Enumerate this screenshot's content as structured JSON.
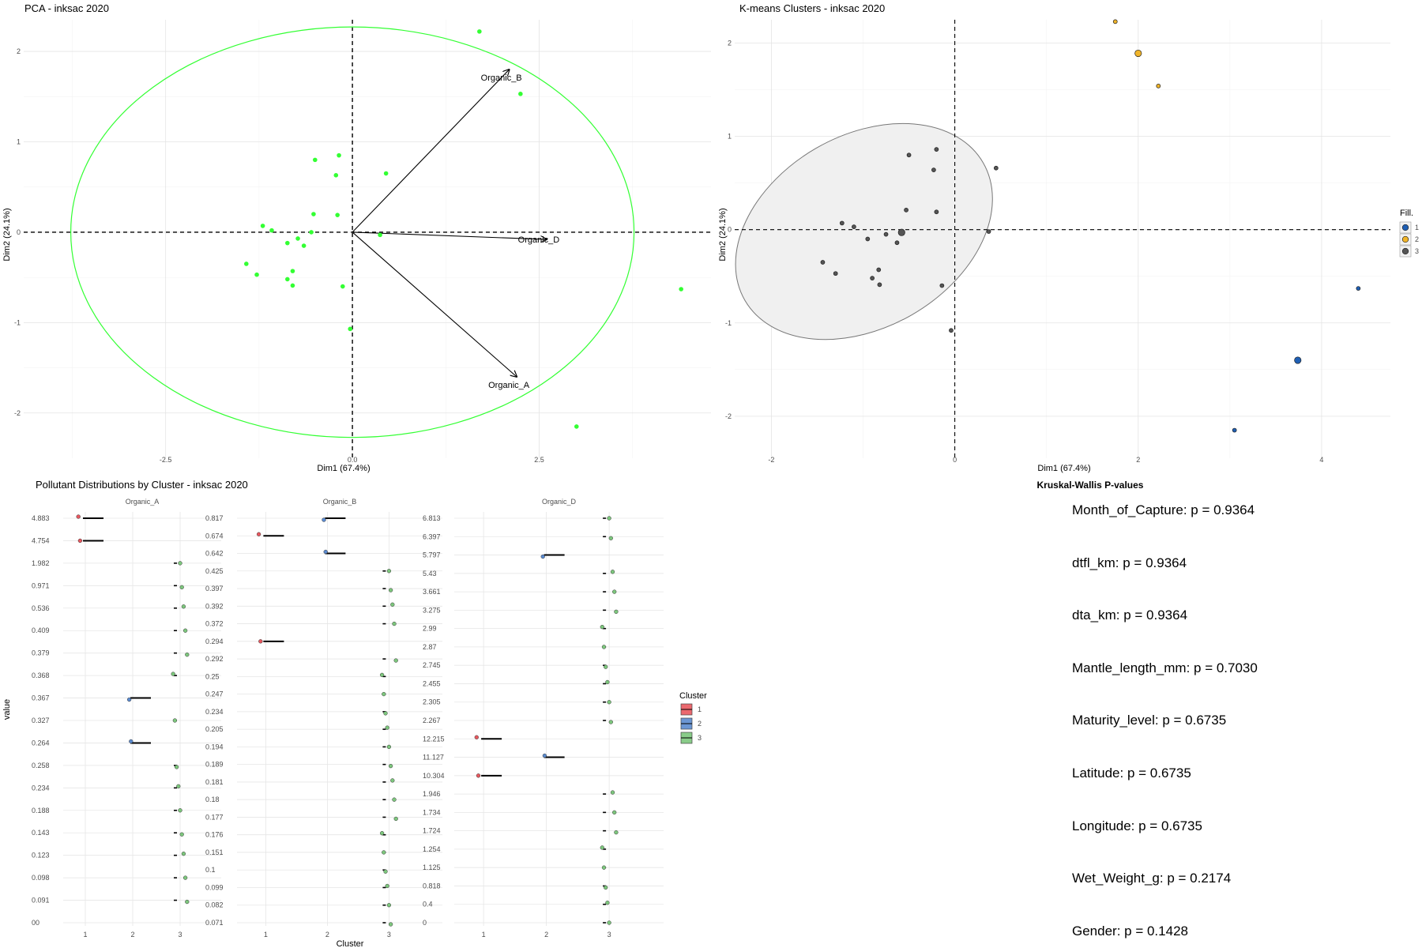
{
  "colors": {
    "pca_points": "#33ff33",
    "pca_ellipse": "#33ff33",
    "cluster1": "#e8585f",
    "cluster2": "#5b8bd0",
    "cluster3": "#7dc77d",
    "km_point": "#555555",
    "km_cluster1": "#1f5fb4",
    "km_cluster2": "#f0b429",
    "ellipse_fill": "#f0f0f0",
    "ellipse_stroke": "#777777"
  },
  "pca": {
    "title": "PCA - inksac 2020",
    "xlabel": "Dim1 (67.4%)",
    "ylabel": "Dim2 (24.1%)",
    "xticks": [
      "-2.5",
      "0.0",
      "2.5"
    ],
    "yticks": [
      "2",
      "1",
      "0",
      "-1",
      "-2"
    ]
  },
  "kmeans": {
    "title": "K-means Clusters - inksac 2020",
    "xlabel": "Dim1 (67.4%)",
    "ylabel": "Dim2 (24.1%)",
    "xticks": [
      "-2",
      "0",
      "2",
      "4"
    ],
    "yticks": [
      "2",
      "1",
      "0",
      "-1",
      "-2"
    ],
    "legend_title": "Fill.",
    "legend_items": [
      "1",
      "2",
      "3"
    ]
  },
  "dist": {
    "title": "Pollutant Distributions by Cluster - inksac 2020",
    "xlabel": "Cluster",
    "ylabel": "value",
    "legend_title": "Cluster",
    "legend_items": [
      "1",
      "2",
      "3"
    ]
  },
  "kw": {
    "title": "Kruskal-Wallis P-values",
    "lines": [
      "Month_of_Capture: p = 0.9364",
      "dtfl_km: p = 0.9364",
      "dta_km: p = 0.9364",
      "Mantle_length_mm: p = 0.7030",
      "Maturity_level: p = 0.6735",
      "Latitude: p = 0.6735",
      "Longitude: p = 0.6735",
      "Wet_Weight_g: p = 0.2174",
      "Gender: p = 0.1428"
    ]
  },
  "chart_data": [
    {
      "type": "scatter",
      "title": "PCA - inksac 2020",
      "xlabel": "Dim1 (67.4%)",
      "ylabel": "Dim2 (24.1%)",
      "xlim": [
        -4.4,
        4.8
      ],
      "ylim": [
        -2.5,
        2.35
      ],
      "grid": true,
      "points": [
        {
          "x": 1.7,
          "y": 2.22
        },
        {
          "x": 2.25,
          "y": 1.53
        },
        {
          "x": 0.45,
          "y": 0.65
        },
        {
          "x": -0.5,
          "y": 0.8
        },
        {
          "x": -0.18,
          "y": 0.85
        },
        {
          "x": -0.22,
          "y": 0.63
        },
        {
          "x": -0.52,
          "y": 0.2
        },
        {
          "x": -0.2,
          "y": 0.19
        },
        {
          "x": -1.2,
          "y": 0.07
        },
        {
          "x": -1.08,
          "y": 0.02
        },
        {
          "x": -0.55,
          "y": 0.0
        },
        {
          "x": -0.73,
          "y": -0.07
        },
        {
          "x": -0.87,
          "y": -0.12
        },
        {
          "x": -0.65,
          "y": -0.15
        },
        {
          "x": 0.37,
          "y": -0.03
        },
        {
          "x": -1.42,
          "y": -0.35
        },
        {
          "x": -1.28,
          "y": -0.47
        },
        {
          "x": -0.8,
          "y": -0.43
        },
        {
          "x": -0.87,
          "y": -0.52
        },
        {
          "x": -0.8,
          "y": -0.59
        },
        {
          "x": -0.13,
          "y": -0.6
        },
        {
          "x": -0.03,
          "y": -1.07
        },
        {
          "x": 4.4,
          "y": -0.63
        },
        {
          "x": 3.0,
          "y": -2.15
        }
      ],
      "ellipse": {
        "cx": 0.0,
        "cy": 0.0,
        "rx": 3.77,
        "ry": 2.27
      },
      "vectors": [
        {
          "name": "Organic_B",
          "x": 2.1,
          "y": 1.8
        },
        {
          "name": "Organic_D",
          "x": 2.6,
          "y": -0.08
        },
        {
          "name": "Organic_A",
          "x": 2.2,
          "y": -1.6
        }
      ]
    },
    {
      "type": "scatter",
      "title": "K-means Clusters - inksac 2020",
      "xlabel": "Dim1 (67.4%)",
      "ylabel": "Dim2 (24.1%)",
      "xlim": [
        -2.4,
        4.75
      ],
      "ylim": [
        -2.45,
        2.25
      ],
      "grid": true,
      "legend_title": "Fill.",
      "legend_position": "right",
      "ellipse": {
        "cx": -0.99,
        "cy": -0.02,
        "rx": 1.5,
        "ry": 1.03,
        "angle_deg": -30
      },
      "points": [
        {
          "cluster": "2",
          "x": 1.75,
          "y": 2.23,
          "center": false
        },
        {
          "cluster": "2",
          "x": 2.0,
          "y": 1.89,
          "center": true
        },
        {
          "cluster": "2",
          "x": 2.22,
          "y": 1.54,
          "center": false
        },
        {
          "cluster": "1",
          "x": 4.4,
          "y": -0.63,
          "center": false
        },
        {
          "cluster": "1",
          "x": 3.74,
          "y": -1.4,
          "center": true
        },
        {
          "cluster": "1",
          "x": 3.05,
          "y": -2.15,
          "center": false
        },
        {
          "cluster": "3",
          "x": 0.45,
          "y": 0.66,
          "center": false
        },
        {
          "cluster": "3",
          "x": -0.5,
          "y": 0.8,
          "center": false
        },
        {
          "cluster": "3",
          "x": -0.2,
          "y": 0.86,
          "center": false
        },
        {
          "cluster": "3",
          "x": -0.23,
          "y": 0.64,
          "center": false
        },
        {
          "cluster": "3",
          "x": -0.53,
          "y": 0.21,
          "center": false
        },
        {
          "cluster": "3",
          "x": -0.2,
          "y": 0.19,
          "center": false
        },
        {
          "cluster": "3",
          "x": -1.23,
          "y": 0.07,
          "center": false
        },
        {
          "cluster": "3",
          "x": -1.1,
          "y": 0.03,
          "center": false
        },
        {
          "cluster": "3",
          "x": -0.58,
          "y": -0.03,
          "center": true
        },
        {
          "cluster": "3",
          "x": -0.75,
          "y": -0.05,
          "center": false
        },
        {
          "cluster": "3",
          "x": -0.95,
          "y": -0.1,
          "center": false
        },
        {
          "cluster": "3",
          "x": -0.63,
          "y": -0.14,
          "center": false
        },
        {
          "cluster": "3",
          "x": 0.37,
          "y": -0.02,
          "center": false
        },
        {
          "cluster": "3",
          "x": -1.44,
          "y": -0.35,
          "center": false
        },
        {
          "cluster": "3",
          "x": -1.3,
          "y": -0.47,
          "center": false
        },
        {
          "cluster": "3",
          "x": -0.83,
          "y": -0.43,
          "center": false
        },
        {
          "cluster": "3",
          "x": -0.9,
          "y": -0.52,
          "center": false
        },
        {
          "cluster": "3",
          "x": -0.82,
          "y": -0.59,
          "center": false
        },
        {
          "cluster": "3",
          "x": -0.14,
          "y": -0.6,
          "center": false
        },
        {
          "cluster": "3",
          "x": -0.04,
          "y": -1.08,
          "center": false
        }
      ]
    },
    {
      "type": "scatter",
      "title": "Pollutant Distributions by Cluster - inksac 2020",
      "xlabel": "Cluster",
      "ylabel": "value",
      "legend_title": "Cluster",
      "legend_position": "right",
      "x_categories": [
        "1",
        "2",
        "3"
      ],
      "facets": [
        {
          "name": "Organic_A",
          "y_categories": [
            "4.883",
            "4.754",
            "1.982",
            "0.971",
            "0.536",
            "0.409",
            "0.379",
            "0.368",
            "0.367",
            "0.327",
            "0.264",
            "0.258",
            "0.234",
            "0.188",
            "0.143",
            "0.123",
            "0.098",
            "0.091",
            "00"
          ],
          "points": [
            {
              "cluster": "1",
              "value": "4.883"
            },
            {
              "cluster": "1",
              "value": "4.754"
            },
            {
              "cluster": "2",
              "value": "0.367"
            },
            {
              "cluster": "2",
              "value": "0.264"
            },
            {
              "cluster": "3",
              "value": "1.982"
            },
            {
              "cluster": "3",
              "value": "0.971"
            },
            {
              "cluster": "3",
              "value": "0.536"
            },
            {
              "cluster": "3",
              "value": "0.409"
            },
            {
              "cluster": "3",
              "value": "0.379"
            },
            {
              "cluster": "3",
              "value": "0.368"
            },
            {
              "cluster": "3",
              "value": "0.327"
            },
            {
              "cluster": "3",
              "value": "0.258"
            },
            {
              "cluster": "3",
              "value": "0.234"
            },
            {
              "cluster": "3",
              "value": "0.188"
            },
            {
              "cluster": "3",
              "value": "0.143"
            },
            {
              "cluster": "3",
              "value": "0.123"
            },
            {
              "cluster": "3",
              "value": "0.098"
            },
            {
              "cluster": "3",
              "value": "0.091"
            },
            {
              "cluster": "3",
              "value": "0"
            }
          ]
        },
        {
          "name": "Organic_B",
          "y_categories": [
            "0.817",
            "0.674",
            "0.642",
            "0.425",
            "0.397",
            "0.392",
            "0.372",
            "0.294",
            "0.292",
            "0.25",
            "0.247",
            "0.234",
            "0.205",
            "0.194",
            "0.189",
            "0.181",
            "0.18",
            "0.177",
            "0.176",
            "0.151",
            "0.1",
            "0.099",
            "0.082",
            "0.071"
          ],
          "points": [
            {
              "cluster": "1",
              "value": "0.674"
            },
            {
              "cluster": "1",
              "value": "0.294"
            },
            {
              "cluster": "2",
              "value": "0.817"
            },
            {
              "cluster": "2",
              "value": "0.642"
            },
            {
              "cluster": "3",
              "value": "0.425"
            },
            {
              "cluster": "3",
              "value": "0.397"
            },
            {
              "cluster": "3",
              "value": "0.392"
            },
            {
              "cluster": "3",
              "value": "0.372"
            },
            {
              "cluster": "3",
              "value": "0.292"
            },
            {
              "cluster": "3",
              "value": "0.25"
            },
            {
              "cluster": "3",
              "value": "0.247"
            },
            {
              "cluster": "3",
              "value": "0.234"
            },
            {
              "cluster": "3",
              "value": "0.205"
            },
            {
              "cluster": "3",
              "value": "0.194"
            },
            {
              "cluster": "3",
              "value": "0.189"
            },
            {
              "cluster": "3",
              "value": "0.181"
            },
            {
              "cluster": "3",
              "value": "0.18"
            },
            {
              "cluster": "3",
              "value": "0.177"
            },
            {
              "cluster": "3",
              "value": "0.176"
            },
            {
              "cluster": "3",
              "value": "0.151"
            },
            {
              "cluster": "3",
              "value": "0.1"
            },
            {
              "cluster": "3",
              "value": "0.099"
            },
            {
              "cluster": "3",
              "value": "0.082"
            },
            {
              "cluster": "3",
              "value": "0.071"
            }
          ]
        },
        {
          "name": "Organic_D",
          "y_categories": [
            "6.813",
            "6.397",
            "5.797",
            "5.43",
            "3.661",
            "3.275",
            "2.99",
            "2.87",
            "2.745",
            "2.455",
            "2.305",
            "2.267",
            "12.215",
            "11.127",
            "10.304",
            "1.946",
            "1.734",
            "1.724",
            "1.254",
            "1.125",
            "0.818",
            "0.4",
            "0"
          ],
          "points": [
            {
              "cluster": "1",
              "value": "12.215"
            },
            {
              "cluster": "1",
              "value": "10.304"
            },
            {
              "cluster": "2",
              "value": "5.797"
            },
            {
              "cluster": "2",
              "value": "11.127"
            },
            {
              "cluster": "3",
              "value": "6.813"
            },
            {
              "cluster": "3",
              "value": "6.397"
            },
            {
              "cluster": "3",
              "value": "5.43"
            },
            {
              "cluster": "3",
              "value": "3.661"
            },
            {
              "cluster": "3",
              "value": "3.275"
            },
            {
              "cluster": "3",
              "value": "2.99"
            },
            {
              "cluster": "3",
              "value": "2.87"
            },
            {
              "cluster": "3",
              "value": "2.745"
            },
            {
              "cluster": "3",
              "value": "2.455"
            },
            {
              "cluster": "3",
              "value": "2.305"
            },
            {
              "cluster": "3",
              "value": "2.267"
            },
            {
              "cluster": "3",
              "value": "1.946"
            },
            {
              "cluster": "3",
              "value": "1.734"
            },
            {
              "cluster": "3",
              "value": "1.724"
            },
            {
              "cluster": "3",
              "value": "1.254"
            },
            {
              "cluster": "3",
              "value": "1.125"
            },
            {
              "cluster": "3",
              "value": "0.818"
            },
            {
              "cluster": "3",
              "value": "0.4"
            },
            {
              "cluster": "3",
              "value": "0"
            }
          ]
        }
      ]
    }
  ]
}
